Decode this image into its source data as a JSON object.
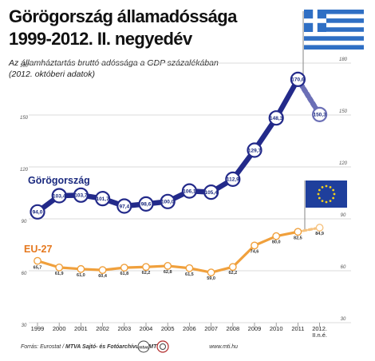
{
  "header": {
    "title_line1": "Görögország államadóssága",
    "title_line2": "1999-2012. II. negyedév",
    "subtitle_line1": "Az államháztartás bruttó adóssága a GDP százalékában",
    "subtitle_line2": "(2012. októberi adatok)"
  },
  "footer": {
    "source_label": "Forrás: Eurostat /",
    "archive": "MTVA Sajtó- és Fotóarchívum / MTI",
    "site": "www.mti.hu"
  },
  "colors": {
    "greece_line": "#232a8a",
    "greece_line_dashed": "#6b6fb6",
    "eu_line": "#f0a03c",
    "eu_line_dashed": "#f6c27e",
    "greece_label": "#1b2a7f",
    "eu_label": "#e5781e",
    "grid": "#cfcfcf",
    "tick_text": "#555555",
    "marker_fill": "#ffffff"
  },
  "chart_data": {
    "type": "line",
    "categories": [
      "1999",
      "2000",
      "2001",
      "2002",
      "2003",
      "2004",
      "2005",
      "2006",
      "2007",
      "2008",
      "2009",
      "2010",
      "2011",
      "2012. II.n.é."
    ],
    "x_tick_labels": [
      "1999",
      "2000",
      "2001",
      "2002",
      "2003",
      "2004",
      "2005",
      "2006",
      "2007",
      "2008",
      "2009",
      "2010",
      "2011",
      "2012.\nII.n.é."
    ],
    "ylim": [
      30,
      180
    ],
    "y_ticks": [
      180,
      150,
      120,
      90,
      60,
      30
    ],
    "series": [
      {
        "name": "Görögország",
        "values": [
          94.0,
          103.4,
          103.7,
          101.7,
          97.4,
          98.6,
          100.0,
          106.1,
          105.4,
          112.9,
          129.7,
          148.3,
          170.6,
          150.3
        ],
        "labels": [
          "94,0",
          "103,4",
          "103,7",
          "101,7",
          "97,4",
          "98,6",
          "100,0",
          "106,1",
          "105,4",
          "112,9",
          "129,7",
          "148,3",
          "170,6",
          "150,3"
        ],
        "dashed_last_segment": true
      },
      {
        "name": "EU-27",
        "values": [
          65.7,
          61.9,
          61.0,
          60.4,
          61.8,
          62.2,
          62.8,
          61.5,
          59.0,
          62.2,
          74.6,
          80.0,
          82.5,
          84.9
        ],
        "labels": [
          "65,7",
          "61,9",
          "61,0",
          "60,4",
          "61,8",
          "62,2",
          "62,8",
          "61,5",
          "59,0",
          "62,2",
          "74,6",
          "80,0",
          "82,5",
          "84,9"
        ],
        "dashed_last_segment": true
      }
    ],
    "grid": true,
    "legend": "inline labels"
  }
}
